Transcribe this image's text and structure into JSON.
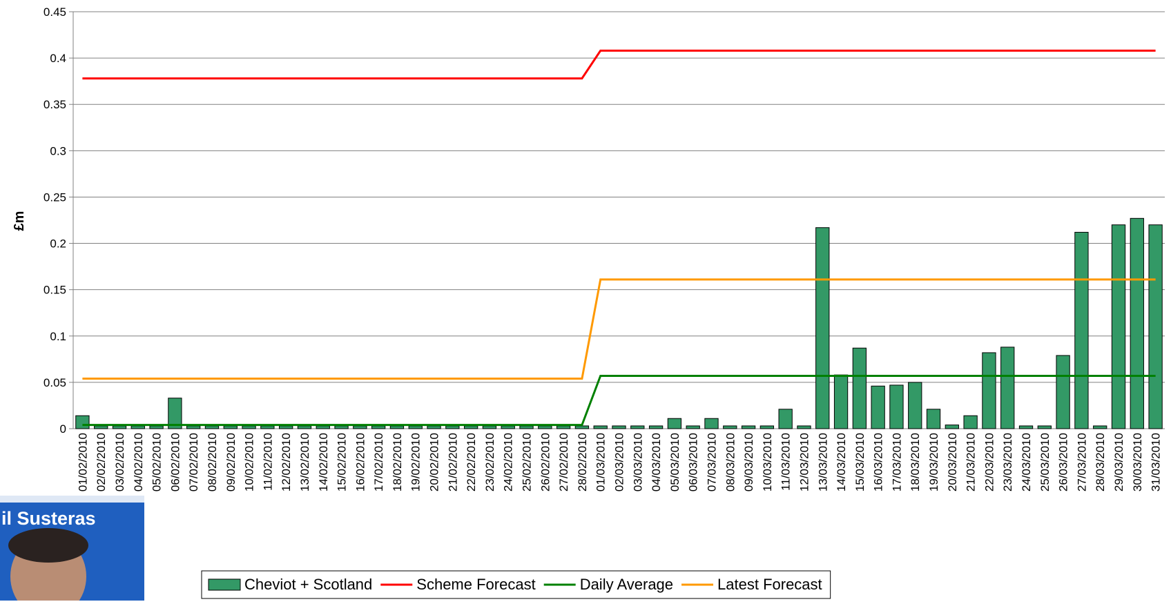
{
  "chart_data": {
    "type": "bar",
    "y_label": "£m",
    "categories": [
      "01/02/2010",
      "02/02/2010",
      "03/02/2010",
      "04/02/2010",
      "05/02/2010",
      "06/02/2010",
      "07/02/2010",
      "08/02/2010",
      "09/02/2010",
      "10/02/2010",
      "11/02/2010",
      "12/02/2010",
      "13/02/2010",
      "14/02/2010",
      "15/02/2010",
      "16/02/2010",
      "17/02/2010",
      "18/02/2010",
      "19/02/2010",
      "20/02/2010",
      "21/02/2010",
      "22/02/2010",
      "23/02/2010",
      "24/02/2010",
      "25/02/2010",
      "26/02/2010",
      "27/02/2010",
      "28/02/2010",
      "01/03/2010",
      "02/03/2010",
      "03/03/2010",
      "04/03/2010",
      "05/03/2010",
      "06/03/2010",
      "07/03/2010",
      "08/03/2010",
      "09/03/2010",
      "10/03/2010",
      "11/03/2010",
      "12/03/2010",
      "13/03/2010",
      "14/03/2010",
      "15/03/2010",
      "16/03/2010",
      "17/03/2010",
      "18/03/2010",
      "19/03/2010",
      "20/03/2010",
      "21/03/2010",
      "22/03/2010",
      "23/03/2010",
      "24/03/2010",
      "25/03/2010",
      "26/03/2010",
      "27/03/2010",
      "28/03/2010",
      "29/03/2010",
      "30/03/2010",
      "31/03/2010"
    ],
    "series": [
      {
        "name": "Cheviot + Scotland",
        "kind": "bar",
        "color": "#339966",
        "values": [
          0.014,
          0.003,
          0.003,
          0.003,
          0.003,
          0.033,
          0.003,
          0.003,
          0.003,
          0.003,
          0.003,
          0.003,
          0.003,
          0.003,
          0.003,
          0.003,
          0.003,
          0.003,
          0.003,
          0.003,
          0.003,
          0.003,
          0.003,
          0.003,
          0.003,
          0.003,
          0.003,
          0.003,
          0.003,
          0.003,
          0.003,
          0.003,
          0.011,
          0.003,
          0.011,
          0.003,
          0.003,
          0.003,
          0.021,
          0.003,
          0.217,
          0.058,
          0.087,
          0.046,
          0.047,
          0.05,
          0.021,
          0.004,
          0.014,
          0.082,
          0.088,
          0.003,
          0.003,
          0.079,
          0.212,
          0.003,
          0.22,
          0.227,
          0.22
        ]
      },
      {
        "name": "Scheme Forecast",
        "kind": "line",
        "color": "#ff0000",
        "values": [
          0.378,
          0.378,
          0.378,
          0.378,
          0.378,
          0.378,
          0.378,
          0.378,
          0.378,
          0.378,
          0.378,
          0.378,
          0.378,
          0.378,
          0.378,
          0.378,
          0.378,
          0.378,
          0.378,
          0.378,
          0.378,
          0.378,
          0.378,
          0.378,
          0.378,
          0.378,
          0.378,
          0.378,
          0.408,
          0.408,
          0.408,
          0.408,
          0.408,
          0.408,
          0.408,
          0.408,
          0.408,
          0.408,
          0.408,
          0.408,
          0.408,
          0.408,
          0.408,
          0.408,
          0.408,
          0.408,
          0.408,
          0.408,
          0.408,
          0.408,
          0.408,
          0.408,
          0.408,
          0.408,
          0.408,
          0.408,
          0.408,
          0.408,
          0.408
        ]
      },
      {
        "name": "Daily Average",
        "kind": "line",
        "color": "#008000",
        "values": [
          0.004,
          0.004,
          0.004,
          0.004,
          0.004,
          0.004,
          0.004,
          0.004,
          0.004,
          0.004,
          0.004,
          0.004,
          0.004,
          0.004,
          0.004,
          0.004,
          0.004,
          0.004,
          0.004,
          0.004,
          0.004,
          0.004,
          0.004,
          0.004,
          0.004,
          0.004,
          0.004,
          0.004,
          0.057,
          0.057,
          0.057,
          0.057,
          0.057,
          0.057,
          0.057,
          0.057,
          0.057,
          0.057,
          0.057,
          0.057,
          0.057,
          0.057,
          0.057,
          0.057,
          0.057,
          0.057,
          0.057,
          0.057,
          0.057,
          0.057,
          0.057,
          0.057,
          0.057,
          0.057,
          0.057,
          0.057,
          0.057,
          0.057,
          0.057
        ]
      },
      {
        "name": "Latest Forecast",
        "kind": "line",
        "color": "#ff9900",
        "values": [
          0.054,
          0.054,
          0.054,
          0.054,
          0.054,
          0.054,
          0.054,
          0.054,
          0.054,
          0.054,
          0.054,
          0.054,
          0.054,
          0.054,
          0.054,
          0.054,
          0.054,
          0.054,
          0.054,
          0.054,
          0.054,
          0.054,
          0.054,
          0.054,
          0.054,
          0.054,
          0.054,
          0.054,
          0.161,
          0.161,
          0.161,
          0.161,
          0.161,
          0.161,
          0.161,
          0.161,
          0.161,
          0.161,
          0.161,
          0.161,
          0.161,
          0.161,
          0.161,
          0.161,
          0.161,
          0.161,
          0.161,
          0.161,
          0.161,
          0.161,
          0.161,
          0.161,
          0.161,
          0.161,
          0.161,
          0.161,
          0.161,
          0.161,
          0.161
        ]
      }
    ],
    "ylim": [
      0,
      0.45
    ],
    "yticks": [
      0,
      0.05,
      0.1,
      0.15,
      0.2,
      0.25,
      0.3,
      0.35,
      0.4,
      0.45
    ],
    "grid": true,
    "legend": "bottom"
  },
  "overlay": {
    "label": "il Susteras"
  }
}
